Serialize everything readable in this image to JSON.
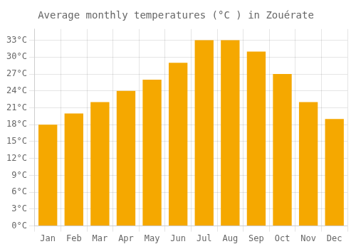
{
  "chart_data": {
    "type": "bar",
    "title": "Average monthly temperatures (°C ) in Zouérate",
    "categories": [
      "Jan",
      "Feb",
      "Mar",
      "Apr",
      "May",
      "Jun",
      "Jul",
      "Aug",
      "Sep",
      "Oct",
      "Nov",
      "Dec"
    ],
    "values": [
      18,
      20,
      22,
      24,
      26,
      29,
      33,
      33,
      31,
      27,
      22,
      19
    ],
    "color": "#F5A800",
    "ylim": [
      0,
      35
    ],
    "yticks": [
      {
        "value": 0,
        "label": "0°C"
      },
      {
        "value": 3,
        "label": "3°C"
      },
      {
        "value": 6,
        "label": "6°C"
      },
      {
        "value": 9,
        "label": "9°C"
      },
      {
        "value": 12,
        "label": "12°C"
      },
      {
        "value": 15,
        "label": "15°C"
      },
      {
        "value": 18,
        "label": "18°C"
      },
      {
        "value": 21,
        "label": "21°C"
      },
      {
        "value": 24,
        "label": "24°C"
      },
      {
        "value": 27,
        "label": "27°C"
      },
      {
        "value": 30,
        "label": "30°C"
      },
      {
        "value": 33,
        "label": "33°C"
      }
    ],
    "grid": true
  }
}
